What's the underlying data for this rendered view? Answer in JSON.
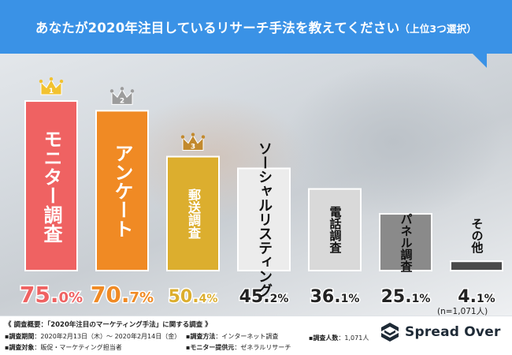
{
  "title": {
    "main": "あなたが2020年注目しているリサーチ手法を教えてください",
    "sub": "（上位3つ選択）"
  },
  "colors": {
    "title_band": "#3a92e6",
    "rank1": "#ef6262",
    "rank2": "#f08a24",
    "rank3": "#dcae2e",
    "gray_light": "#ececec",
    "gray_mid": "#d9d9d9",
    "gray_dark": "#8a8a8a",
    "gray_darkest": "#4a4a4a",
    "crown_gold": "#f2c230",
    "crown_silver": "#9c9c9c",
    "crown_bronze": "#c2892d"
  },
  "chart_data": {
    "type": "bar",
    "unit": "%",
    "ylim": [
      0,
      80
    ],
    "grid": false,
    "legend": "none",
    "categories": [
      "モニター調査",
      "アンケート",
      "郵送調査",
      "ソーシャルリスティング",
      "電話調査",
      "パネル調査",
      "その他"
    ],
    "values": [
      75.0,
      70.7,
      50.4,
      45.2,
      36.1,
      25.1,
      4.1
    ],
    "value_labels": [
      {
        "int": "75.",
        "dec": "0%"
      },
      {
        "int": "70.",
        "dec": "7%"
      },
      {
        "int": "50.",
        "dec": "4%"
      },
      {
        "int": "45.",
        "dec": "2%"
      },
      {
        "int": "36.",
        "dec": "1%"
      },
      {
        "int": "25.",
        "dec": "1%"
      },
      {
        "int": "4.",
        "dec": "1%"
      }
    ],
    "ranks": [
      "1",
      "2",
      "3"
    ],
    "note": "(n=1,071人)"
  },
  "footer": {
    "heading": "《 調査概要：「2020年注目のマーケティング手法」に関する調査 》",
    "period_label": "調査期間",
    "period_value": "：2020年2月13日（木）～ 2020年2月14日（金）",
    "method_label": "調査方法",
    "method_value": "：インターネット調査",
    "count_label": "調査人数",
    "count_value": "：1,071人",
    "target_label": "調査対象",
    "target_value": "：販促・マーケティング担当者",
    "provider_label": "モニター提供元",
    "provider_value": "：ゼネラルリサーチ"
  },
  "brand": {
    "name": "Spread Over"
  }
}
